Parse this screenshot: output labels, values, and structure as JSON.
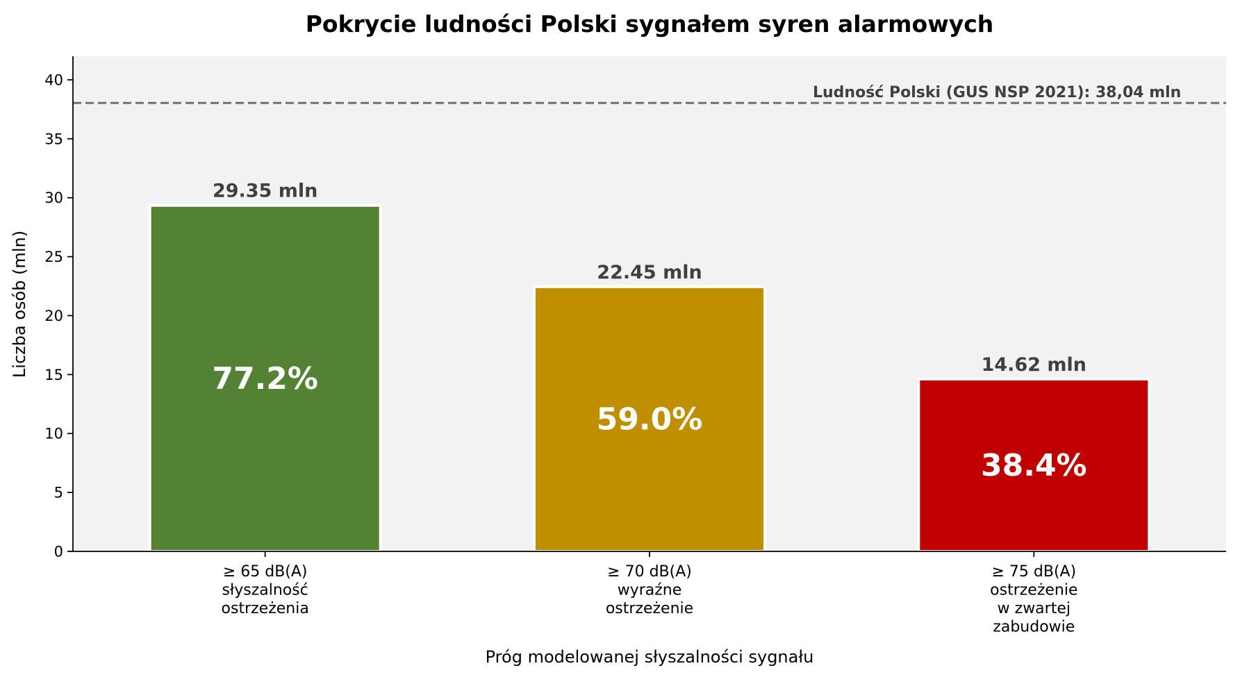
{
  "chart_data": {
    "type": "bar",
    "title": "Pokrycie ludności Polski sygnałem syren alarmowych",
    "xlabel": "Próg modelowanej słyszalności sygnału",
    "ylabel": "Liczba osób (mln)",
    "ylim": [
      0,
      42
    ],
    "yticks": [
      0,
      5,
      10,
      15,
      20,
      25,
      30,
      35,
      40
    ],
    "grid": false,
    "background": "#f2f2f2",
    "categories": [
      [
        "≥ 65 dB(A)",
        "słyszalność",
        "ostrzeżenia"
      ],
      [
        "≥ 70 dB(A)",
        "wyraźne",
        "ostrzeżenie"
      ],
      [
        "≥ 75 dB(A)",
        "ostrzeżenie",
        "w zwartej",
        "zabudowie"
      ]
    ],
    "values": [
      29.35,
      22.45,
      14.62
    ],
    "value_labels": [
      "29.35 mln",
      "22.45 mln",
      "14.62 mln"
    ],
    "percent_labels": [
      "77.2%",
      "59.0%",
      "38.4%"
    ],
    "colors": [
      "#548235",
      "#bf8f00",
      "#c00000"
    ],
    "reference_line": {
      "value": 38.04,
      "label": "Ludność Polski (GUS NSP 2021): 38,04 mln",
      "color": "#707070",
      "style": "dashed"
    }
  }
}
